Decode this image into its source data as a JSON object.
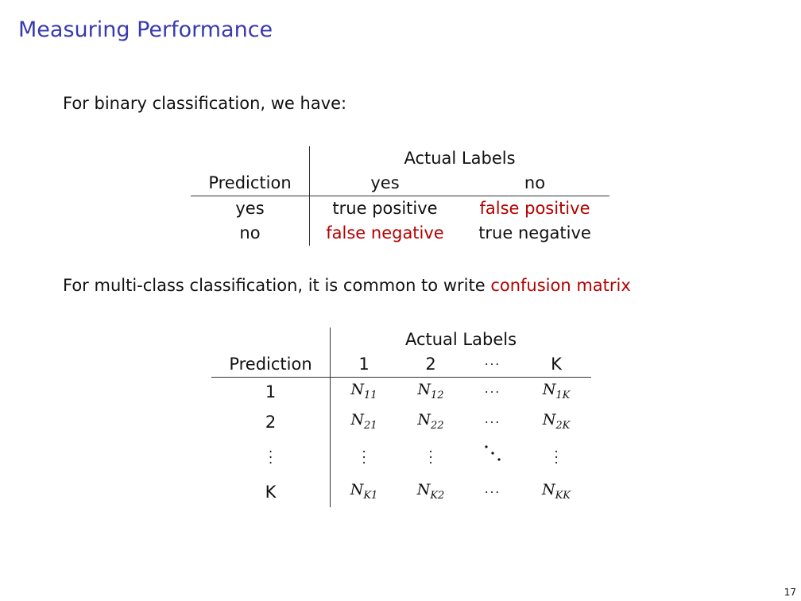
{
  "title": "Measuring Performance",
  "binary_intro": "For binary classification, we have:",
  "binary_table": {
    "actual_header": "Actual Labels",
    "prediction_header": "Prediction",
    "col_yes": "yes",
    "col_no": "no",
    "row_yes": "yes",
    "row_no": "no",
    "tp": "true positive",
    "fp": "false positive",
    "fn": "false negative",
    "tn": "true negative"
  },
  "multi_intro": "For multi-class classification, it is common to write",
  "multi_intro_highlight": "confusion matrix",
  "multi_table": {
    "actual_header": "Actual Labels",
    "prediction_header": "Prediction",
    "cols": [
      "1",
      "2",
      "···",
      "K"
    ],
    "rows": [
      "1",
      "2",
      "⋮",
      "K"
    ],
    "cells": [
      [
        "N",
        "11",
        "N",
        "12",
        "···",
        "N",
        "1K"
      ],
      [
        "N",
        "21",
        "N",
        "22",
        "···",
        "N",
        "2K"
      ],
      [
        "N",
        "K1",
        "N",
        "K2",
        "···",
        "N",
        "KK"
      ]
    ]
  },
  "page_number": "17",
  "colors": {
    "title": "#3a3ab0",
    "highlight": "#b50000"
  }
}
